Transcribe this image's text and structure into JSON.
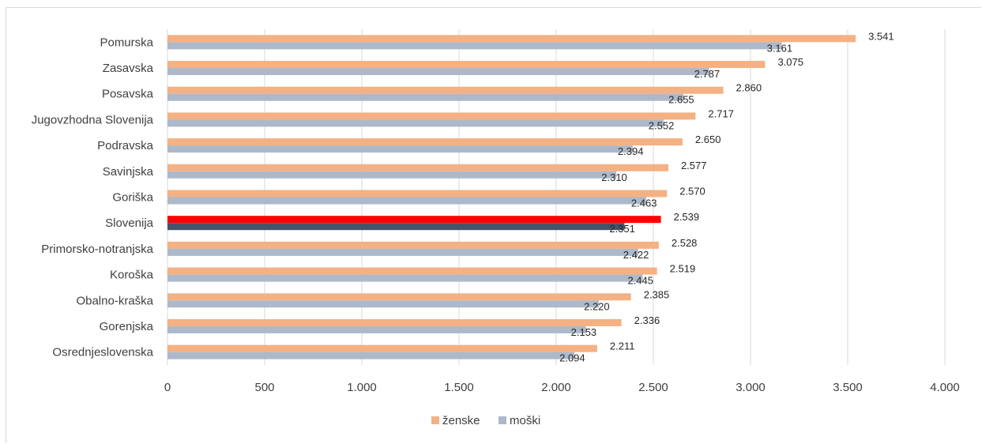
{
  "chart_data": {
    "type": "bar",
    "orientation": "horizontal",
    "categories": [
      "Pomurska",
      "Zasavska",
      "Posavska",
      "Jugovzhodna Slovenija",
      "Podravska",
      "Savinjska",
      "Goriška",
      "Slovenija",
      "Primorsko-notranjska",
      "Koroška",
      "Obalno-kraška",
      "Gorenjska",
      "Osrednjeslovenska"
    ],
    "series": [
      {
        "name": "ženske",
        "color": "#F4B183",
        "values": [
          3541,
          3075,
          2860,
          2717,
          2650,
          2577,
          2570,
          2539,
          2528,
          2519,
          2385,
          2336,
          2211
        ],
        "labels": [
          "3.541",
          "3.075",
          "2.860",
          "2.717",
          "2.650",
          "2.577",
          "2.570",
          "2.539",
          "2.528",
          "2.519",
          "2.385",
          "2.336",
          "2.211"
        ]
      },
      {
        "name": "moški",
        "color": "#ADB9CA",
        "values": [
          3161,
          2787,
          2655,
          2552,
          2394,
          2310,
          2463,
          2351,
          2422,
          2445,
          2220,
          2153,
          2094
        ],
        "labels": [
          "3.161",
          "2.787",
          "2.655",
          "2.552",
          "2.394",
          "2.310",
          "2.463",
          "2.351",
          "2.422",
          "2.445",
          "2.220",
          "2.153",
          "2.094"
        ]
      }
    ],
    "highlight": {
      "category": "Slovenija",
      "colors": {
        "ženske": "#FF0000",
        "moški": "#44546A"
      }
    },
    "xlim": [
      0,
      4000
    ],
    "xticks": [
      0,
      500,
      1000,
      1500,
      2000,
      2500,
      3000,
      3500,
      4000
    ],
    "xtick_labels": [
      "0",
      "500",
      "1.000",
      "1.500",
      "2.000",
      "2.500",
      "3.000",
      "3.500",
      "4.000"
    ],
    "grid": "vertical",
    "legend_position": "bottom",
    "gridline_color": "#D9D9D9",
    "title": "",
    "xlabel": "",
    "ylabel": ""
  }
}
